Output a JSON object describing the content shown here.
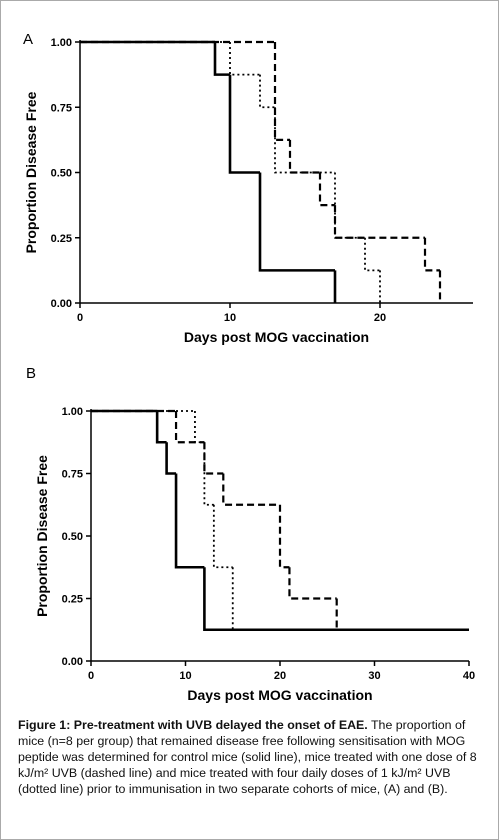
{
  "chart_data": [
    {
      "type": "step",
      "panel": "A",
      "xlabel": "Days post MOG vaccination",
      "ylabel": "Proportion Disease Free",
      "xlim": [
        0,
        26.2
      ],
      "ylim": [
        0,
        1
      ],
      "xticks": [
        0,
        10,
        20
      ],
      "yticks": [
        {
          "value": 0,
          "label": "0.00"
        },
        {
          "value": 0.25,
          "label": "0.25"
        },
        {
          "value": 0.5,
          "label": "0.50"
        },
        {
          "value": 0.75,
          "label": "0.75"
        },
        {
          "value": 1,
          "label": "1.00"
        }
      ],
      "series": [
        {
          "style": "solid",
          "color": "#000000",
          "x": [
            0,
            9,
            10,
            12,
            17
          ],
          "values": [
            1,
            0.875,
            0.5,
            0.125,
            0
          ]
        },
        {
          "style": "dashed",
          "color": "#000000",
          "x": [
            0,
            13,
            14,
            16,
            17,
            23,
            24
          ],
          "values": [
            1,
            0.625,
            0.5,
            0.375,
            0.25,
            0.125,
            0
          ]
        },
        {
          "style": "dotted",
          "color": "#000000",
          "x": [
            0,
            10,
            12,
            13,
            17,
            19,
            20
          ],
          "values": [
            1,
            0.875,
            0.75,
            0.5,
            0.25,
            0.125,
            0
          ]
        }
      ]
    },
    {
      "type": "step",
      "panel": "B",
      "xlabel": "Days post MOG vaccination",
      "ylabel": "Proportion Disease Free",
      "xlim": [
        0,
        40
      ],
      "ylim": [
        0,
        1
      ],
      "xticks": [
        0,
        10,
        20,
        30,
        40
      ],
      "yticks": [
        {
          "value": 0,
          "label": "0.00"
        },
        {
          "value": 0.25,
          "label": "0.25"
        },
        {
          "value": 0.5,
          "label": "0.50"
        },
        {
          "value": 0.75,
          "label": "0.75"
        },
        {
          "value": 1,
          "label": "1.00"
        }
      ],
      "series": [
        {
          "style": "solid",
          "color": "#000000",
          "x": [
            0,
            7,
            8,
            9,
            12,
            40
          ],
          "values": [
            1,
            0.875,
            0.75,
            0.375,
            0.125,
            0.125
          ]
        },
        {
          "style": "dashed",
          "color": "#000000",
          "x": [
            0,
            9,
            12,
            14,
            20,
            21,
            26
          ],
          "values": [
            1,
            0.875,
            0.75,
            0.625,
            0.375,
            0.25,
            0.125
          ]
        },
        {
          "style": "dotted",
          "color": "#000000",
          "x": [
            0,
            11,
            12,
            13,
            15
          ],
          "values": [
            1,
            0.875,
            0.625,
            0.375,
            0.125
          ]
        }
      ]
    }
  ],
  "caption": {
    "label": "Figure 1: Pre-treatment with UVB delayed the onset of EAE.",
    "text": "The proportion of mice (n=8 per group) that remained disease free following sensitisation with MOG peptide was determined for control mice (solid line), mice treated with one dose of 8 kJ/m² UVB (dashed line) and mice treated with four daily doses of 1 kJ/m² UVB (dotted line) prior to immunisation in two separate cohorts of mice, (A) and (B)."
  }
}
